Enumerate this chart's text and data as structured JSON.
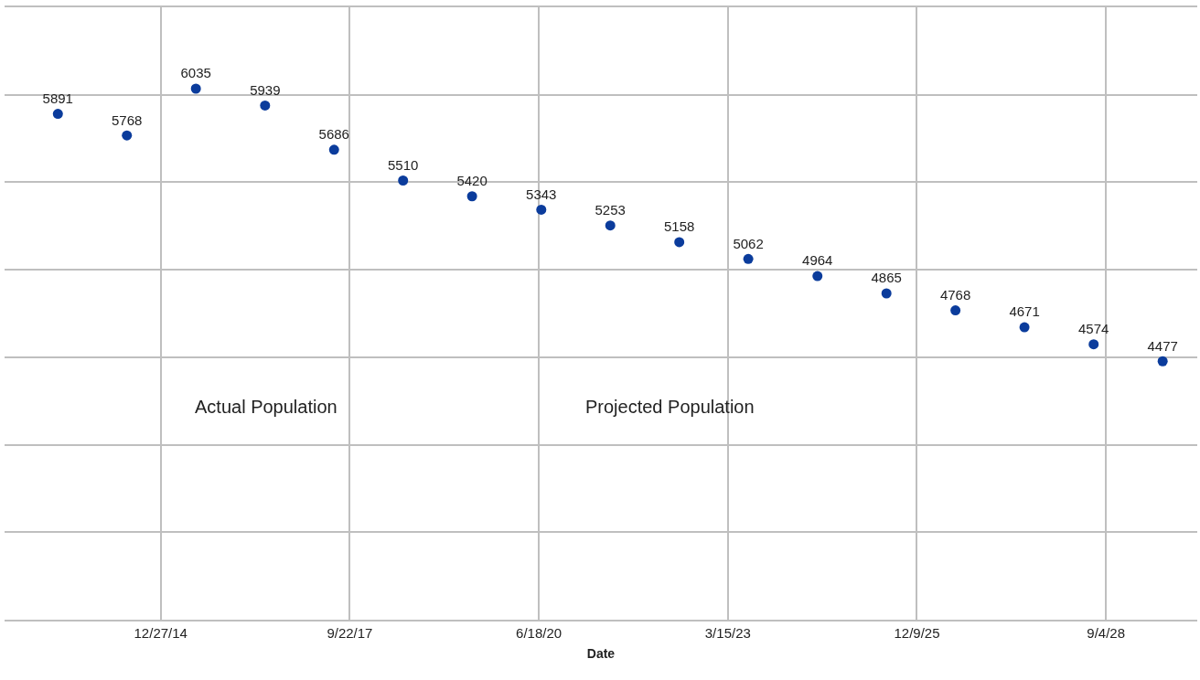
{
  "chart_data": {
    "type": "scatter",
    "xlabel": "Date",
    "x": [
      "2013-07-01",
      "2014-07-01",
      "2015-07-01",
      "2016-07-01",
      "2017-07-01",
      "2018-07-01",
      "2019-07-01",
      "2020-07-01",
      "2021-07-01",
      "2022-07-01",
      "2023-07-01",
      "2024-07-01",
      "2025-07-01",
      "2026-07-01",
      "2027-07-01",
      "2028-07-01",
      "2029-07-01"
    ],
    "series": [
      {
        "color": "#0b3c9c",
        "values": [
          5891,
          5768,
          6035,
          5939,
          5686,
          5510,
          5420,
          5343,
          5253,
          5158,
          5062,
          4964,
          4865,
          4768,
          4671,
          4574,
          4477
        ]
      }
    ],
    "data_labels": true,
    "marker": "circle",
    "grid": true,
    "legend": false,
    "tick_labels": "x",
    "xlim": [
      "2012-09-22",
      "2029-12-31"
    ],
    "xticks": [
      {
        "value": "2014-12-27",
        "label": "12/27/14"
      },
      {
        "value": "2017-09-22",
        "label": "9/22/17"
      },
      {
        "value": "2020-06-18",
        "label": "6/18/20"
      },
      {
        "value": "2023-03-15",
        "label": "3/15/23"
      },
      {
        "value": "2025-12-09",
        "label": "12/9/25"
      },
      {
        "value": "2028-09-04",
        "label": "9/4/28"
      }
    ],
    "ylim": [
      3000,
      6500
    ],
    "yticks": [
      {
        "value": 3000,
        "label": null
      },
      {
        "value": 3500,
        "label": null
      },
      {
        "value": 4000,
        "label": null
      },
      {
        "value": 4500,
        "label": null
      },
      {
        "value": 5000,
        "label": null
      },
      {
        "value": 5500,
        "label": null
      },
      {
        "value": 6000,
        "label": null
      }
    ],
    "annotations": [
      "Actual Population",
      "Projected Population"
    ]
  }
}
